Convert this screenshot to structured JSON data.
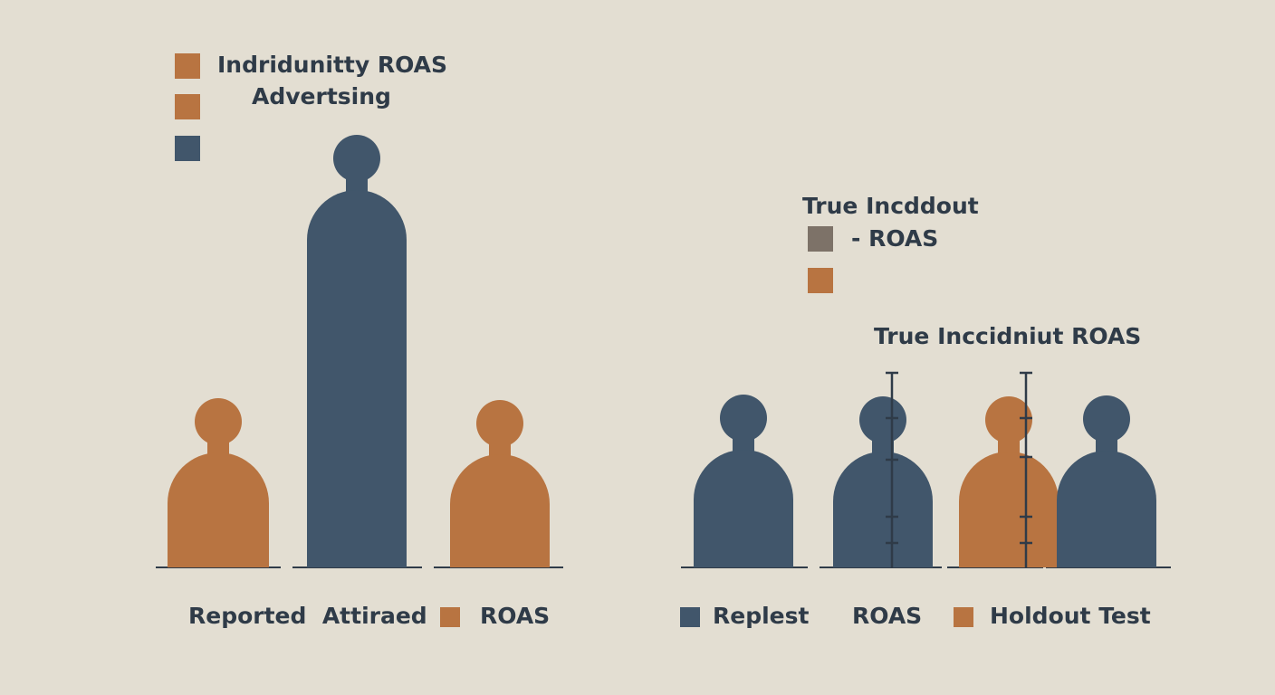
{
  "colors": {
    "background": "#e3ded2",
    "orange": "#b87441",
    "navy": "#41566b",
    "gray": "#7d7268",
    "axis": "#2f3b48",
    "text": "#2f3b48"
  },
  "left_legend": {
    "line1": "Indridunitty ROAS",
    "line2": "Advertsing",
    "swatches": [
      "orange",
      "orange",
      "navy"
    ]
  },
  "right_legend": {
    "title": "True Incddout",
    "item_label": "- ROAS",
    "swatches": [
      "gray",
      "orange"
    ]
  },
  "right_heading": "True Inccidniut ROAS",
  "left_figures": [
    {
      "color": "orange",
      "size": "short"
    },
    {
      "color": "navy",
      "size": "tall"
    },
    {
      "color": "orange",
      "size": "short"
    }
  ],
  "right_figures": [
    {
      "color": "navy",
      "size": "short"
    },
    {
      "color": "navy",
      "size": "short"
    },
    {
      "color": "orange",
      "size": "short"
    },
    {
      "color": "navy",
      "size": "short"
    }
  ],
  "bottom_labels": {
    "left_text": "Reported  Attiraed",
    "left_item": "ROAS",
    "right_item1": "Replest",
    "right_middle": "ROAS",
    "right_item2": "Holdout Test"
  }
}
